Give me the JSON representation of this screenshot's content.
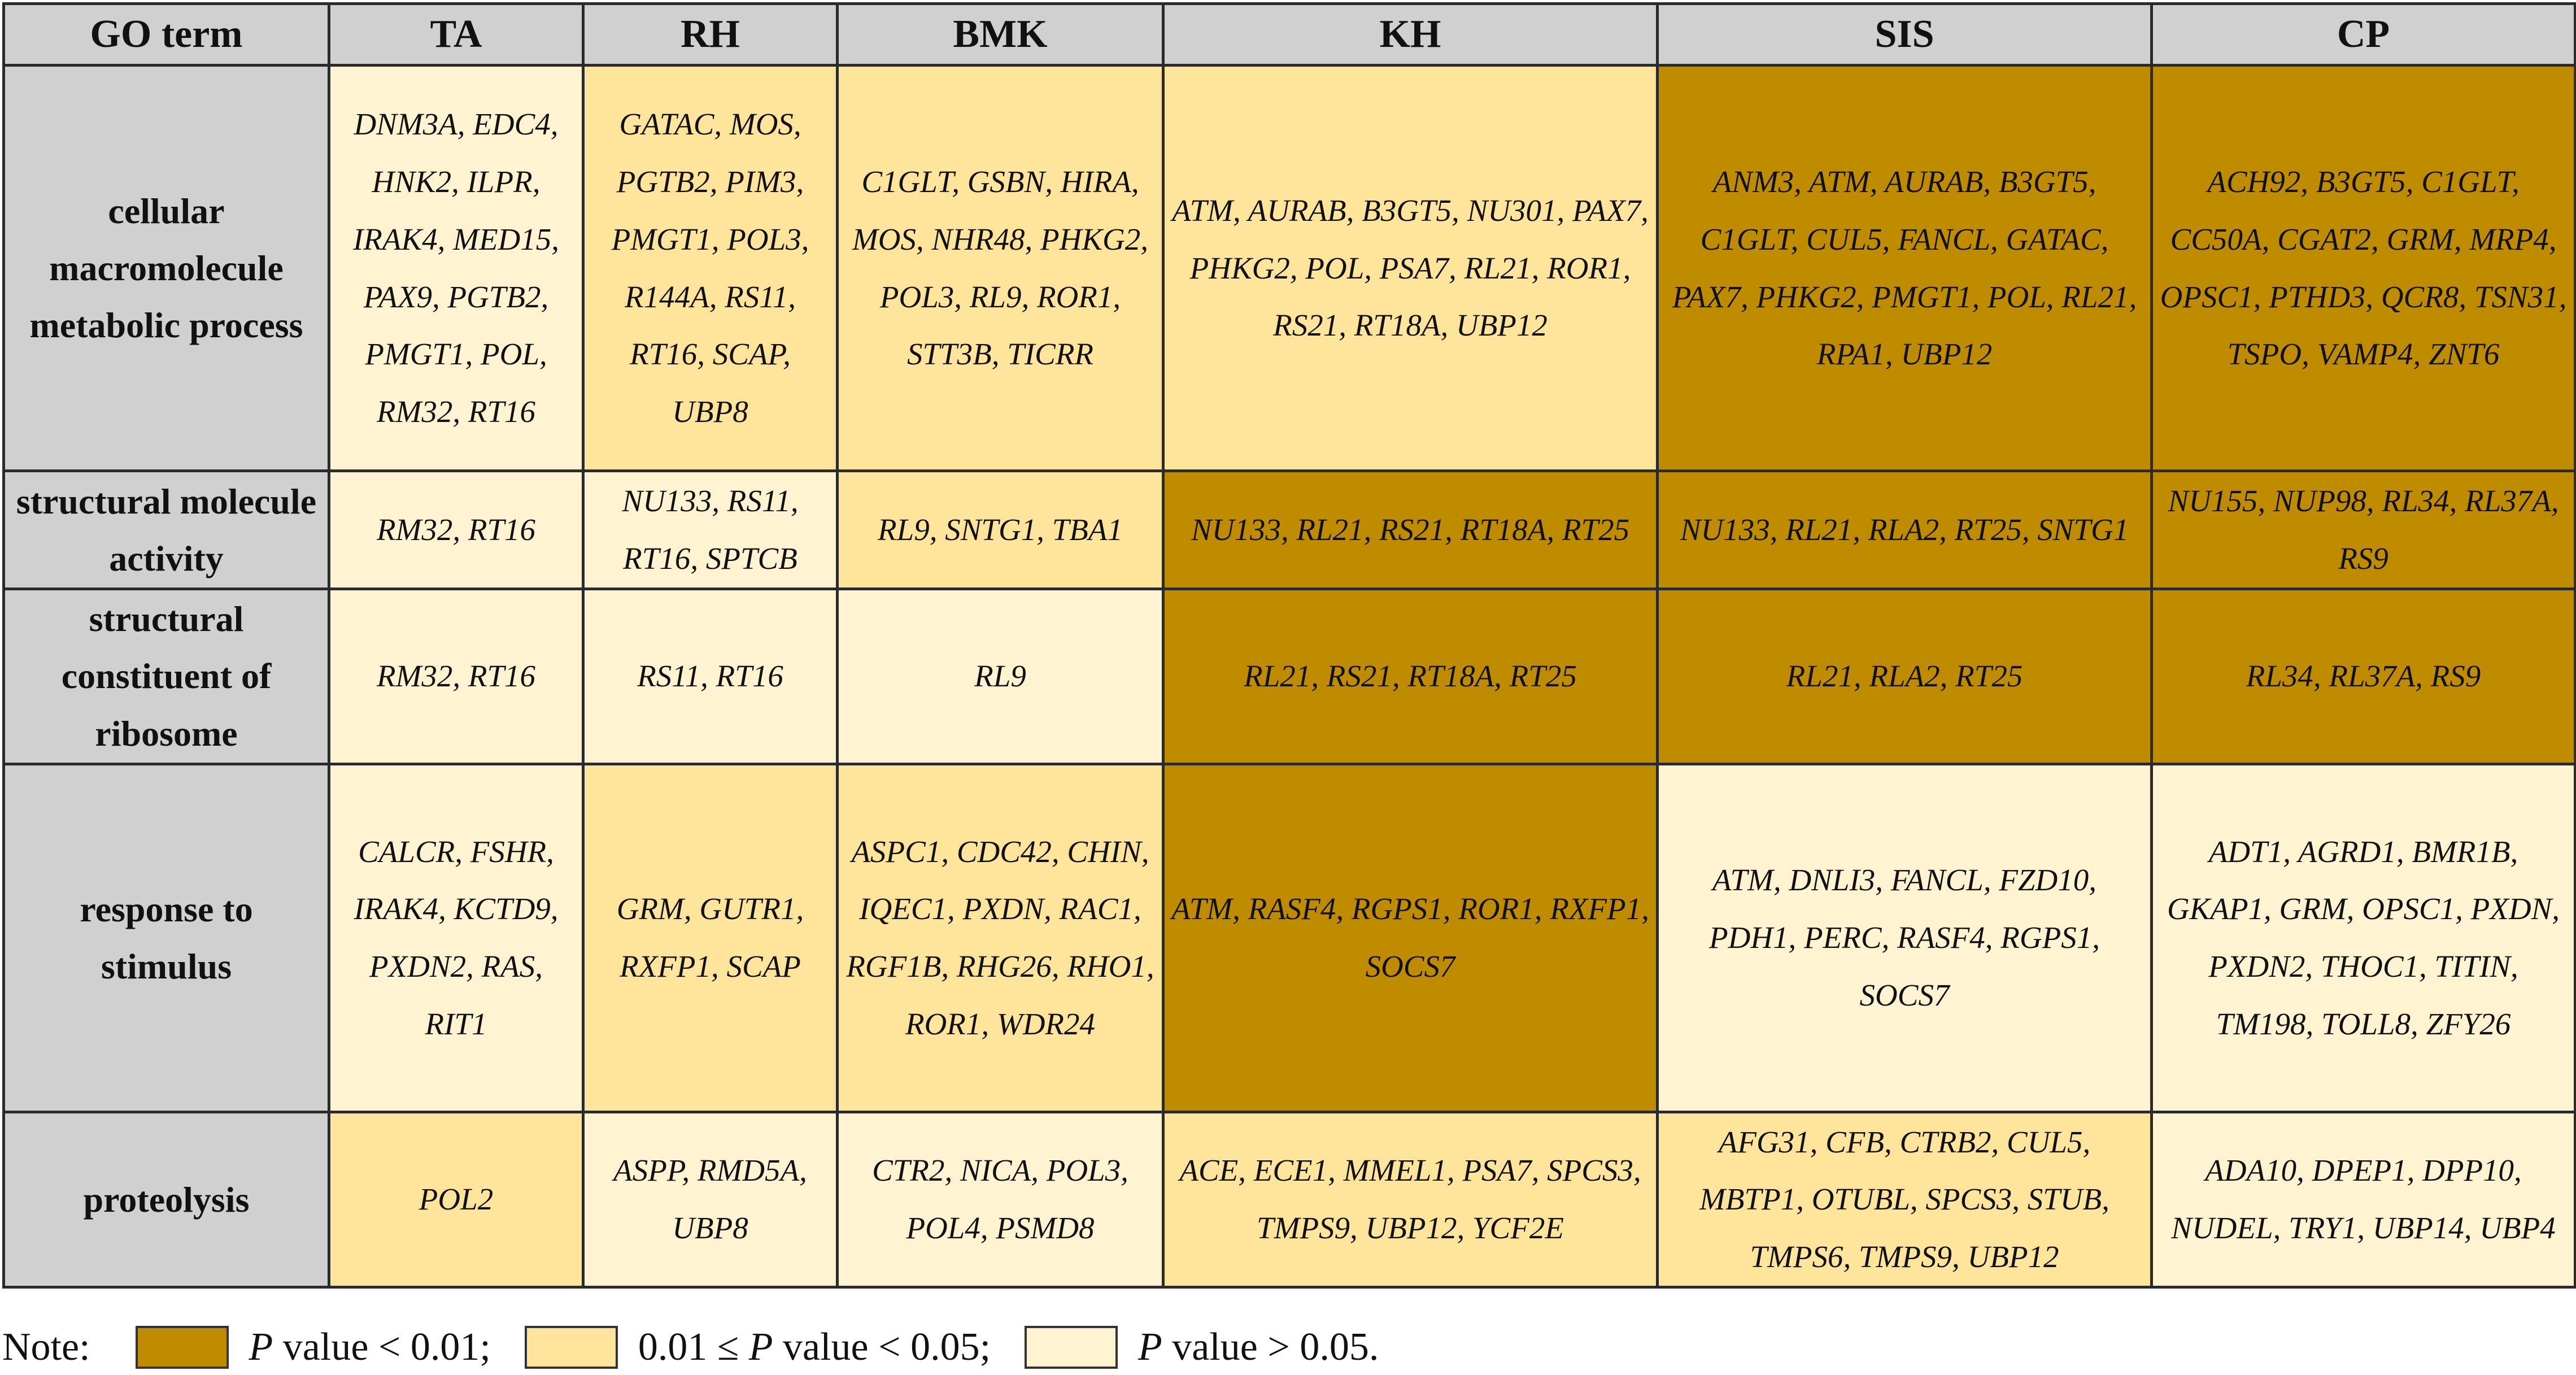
{
  "chart_data": {
    "type": "table",
    "columns": [
      "GO term",
      "TA",
      "RH",
      "BMK",
      "KH",
      "SIS",
      "CP"
    ],
    "rows": [
      {
        "term": "cellular macromolecule metabolic process",
        "cells": [
          {
            "genes": "DNM3A, EDC4, HNK2, ILPR, IRAK4, MED15, PAX9, PGTB2, PMGT1, POL, RM32, RT16",
            "level": "low"
          },
          {
            "genes": "GATAC, MOS, PGTB2, PIM3, PMGT1, POL3, R144A, RS11, RT16, SCAP, UBP8",
            "level": "mid"
          },
          {
            "genes": "C1GLT, GSBN, HIRA, MOS, NHR48, PHKG2, POL3, RL9, ROR1, STT3B, TICRR",
            "level": "mid"
          },
          {
            "genes": "ATM, AURAB, B3GT5, NU301, PAX7, PHKG2, POL, PSA7, RL21, ROR1, RS21, RT18A, UBP12",
            "level": "mid"
          },
          {
            "genes": "ANM3, ATM, AURAB, B3GT5, C1GLT, CUL5, FANCL, GATAC, PAX7, PHKG2, PMGT1, POL, RL21, RPA1, UBP12",
            "level": "high"
          },
          {
            "genes": "ACH92, B3GT5, C1GLT, CC50A, CGAT2, GRM, MRP4, OPSC1, PTHD3, QCR8, TSN31, TSPO, VAMP4, ZNT6",
            "level": "high"
          }
        ]
      },
      {
        "term": "structural molecule activity",
        "cells": [
          {
            "genes": "RM32, RT16",
            "level": "low"
          },
          {
            "genes": "NU133, RS11, RT16, SPTCB",
            "level": "low"
          },
          {
            "genes": "RL9, SNTG1, TBA1",
            "level": "mid"
          },
          {
            "genes": "NU133, RL21, RS21, RT18A, RT25",
            "level": "high"
          },
          {
            "genes": "NU133, RL21, RLA2, RT25, SNTG1",
            "level": "high"
          },
          {
            "genes": "NU155, NUP98, RL34, RL37A, RS9",
            "level": "high"
          }
        ]
      },
      {
        "term": "structural constituent of ribosome",
        "cells": [
          {
            "genes": "RM32, RT16",
            "level": "low"
          },
          {
            "genes": "RS11, RT16",
            "level": "low"
          },
          {
            "genes": "RL9",
            "level": "low"
          },
          {
            "genes": "RL21, RS21, RT18A, RT25",
            "level": "high"
          },
          {
            "genes": "RL21, RLA2, RT25",
            "level": "high"
          },
          {
            "genes": "RL34, RL37A, RS9",
            "level": "high"
          }
        ]
      },
      {
        "term": "response to stimulus",
        "cells": [
          {
            "genes": "CALCR, FSHR, IRAK4, KCTD9, PXDN2, RAS, RIT1",
            "level": "low"
          },
          {
            "genes": "GRM, GUTR1, RXFP1, SCAP",
            "level": "mid"
          },
          {
            "genes": "ASPC1, CDC42, CHIN, IQEC1, PXDN, RAC1, RGF1B, RHG26, RHO1, ROR1, WDR24",
            "level": "mid"
          },
          {
            "genes": "ATM, RASF4, RGPS1, ROR1, RXFP1, SOCS7",
            "level": "high"
          },
          {
            "genes": "ATM, DNLI3, FANCL, FZD10, PDH1, PERC, RASF4, RGPS1, SOCS7",
            "level": "low"
          },
          {
            "genes": "ADT1, AGRD1, BMR1B, GKAP1, GRM, OPSC1, PXDN, PXDN2, THOC1, TITIN, TM198, TOLL8, ZFY26",
            "level": "low"
          }
        ]
      },
      {
        "term": "proteolysis",
        "cells": [
          {
            "genes": "POL2",
            "level": "mid"
          },
          {
            "genes": "ASPP, RMD5A, UBP8",
            "level": "low"
          },
          {
            "genes": "CTR2, NICA, POL3, POL4, PSMD8",
            "level": "low"
          },
          {
            "genes": "ACE, ECE1, MMEL1, PSA7, SPCS3, TMPS9, UBP12, YCF2E",
            "level": "mid"
          },
          {
            "genes": "AFG31, CFB, CTRB2, CUL5, MBTP1, OTUBL, SPCS3, STUB, TMPS6, TMPS9, UBP12",
            "level": "mid"
          },
          {
            "genes": "ADA10, DPEP1, DPP10, NUDEL, TRY1, UBP14, UBP4",
            "level": "low"
          }
        ]
      }
    ],
    "colors": {
      "high": "#bf8c00",
      "mid": "#ffe49b",
      "low": "#fff3d1",
      "header": "#d0d0d0"
    },
    "legend": {
      "label": "Note:",
      "items": [
        {
          "level": "high",
          "text": "P value < 0.01;"
        },
        {
          "level": "mid",
          "text": "0.01 ≤ P value < 0.05;"
        },
        {
          "level": "low",
          "text": "P value > 0.05."
        }
      ]
    }
  }
}
